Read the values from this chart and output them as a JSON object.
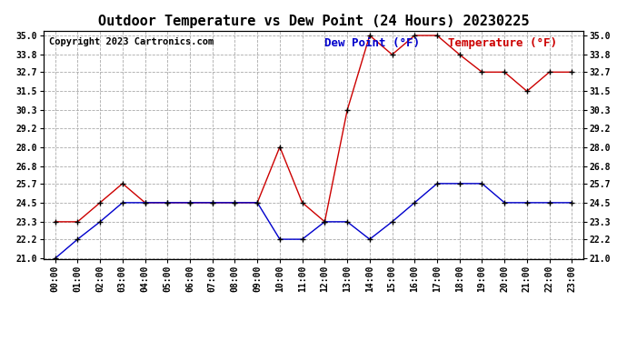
{
  "title": "Outdoor Temperature vs Dew Point (24 Hours) 20230225",
  "copyright": "Copyright 2023 Cartronics.com",
  "legend_dew": "Dew Point (°F)",
  "legend_temp": "Temperature (°F)",
  "x_labels": [
    "00:00",
    "01:00",
    "02:00",
    "03:00",
    "04:00",
    "05:00",
    "06:00",
    "07:00",
    "08:00",
    "09:00",
    "10:00",
    "11:00",
    "12:00",
    "13:00",
    "14:00",
    "15:00",
    "16:00",
    "17:00",
    "18:00",
    "19:00",
    "20:00",
    "21:00",
    "22:00",
    "23:00"
  ],
  "temperature_data": [
    23.3,
    23.3,
    24.5,
    25.7,
    24.5,
    24.5,
    24.5,
    24.5,
    24.5,
    24.5,
    28.0,
    24.5,
    23.3,
    30.3,
    35.0,
    33.8,
    35.0,
    35.0,
    33.8,
    32.7,
    32.7,
    31.5,
    32.7,
    32.7
  ],
  "dewpoint_data": [
    21.0,
    22.2,
    23.3,
    24.5,
    24.5,
    24.5,
    24.5,
    24.5,
    24.5,
    24.5,
    22.2,
    22.2,
    23.3,
    23.3,
    22.2,
    23.3,
    24.5,
    25.7,
    25.7,
    25.7,
    24.5,
    24.5,
    24.5,
    24.5
  ],
  "temp_color": "#cc0000",
  "dew_color": "#0000cc",
  "y_min": 21.0,
  "y_max": 35.0,
  "y_ticks": [
    21.0,
    22.2,
    23.3,
    24.5,
    25.7,
    26.8,
    28.0,
    29.2,
    30.3,
    31.5,
    32.7,
    33.8,
    35.0
  ],
  "background_color": "#ffffff",
  "grid_color": "#aaaaaa",
  "title_fontsize": 11,
  "copyright_fontsize": 7.5,
  "legend_fontsize": 9,
  "axis_fontsize": 7
}
